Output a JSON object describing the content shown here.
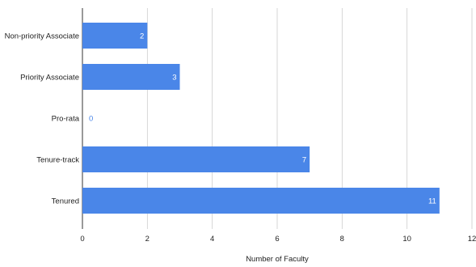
{
  "chart_data": {
    "type": "bar",
    "orientation": "horizontal",
    "categories": [
      "Non-priority Associate",
      "Priority Associate",
      "Pro-rata",
      "Tenure-track",
      "Tenured"
    ],
    "values": [
      2,
      3,
      0,
      7,
      11
    ],
    "data_labels": [
      "2",
      "3",
      "0",
      "7",
      "11"
    ],
    "title": "",
    "xlabel": "Number of Faculty",
    "ylabel": "",
    "xlim": [
      0,
      12
    ],
    "x_ticks": [
      0,
      2,
      4,
      6,
      8,
      10,
      12
    ],
    "x_tick_labels": [
      "0",
      "2",
      "4",
      "6",
      "8",
      "10",
      "12"
    ],
    "grid": true,
    "legend": "none",
    "colors": {
      "bar": "#4a86e8",
      "grid": "#cccccc",
      "axis_text": "#222222",
      "label_inside": "#ffffff",
      "label_outside": "#4a86e8"
    }
  }
}
